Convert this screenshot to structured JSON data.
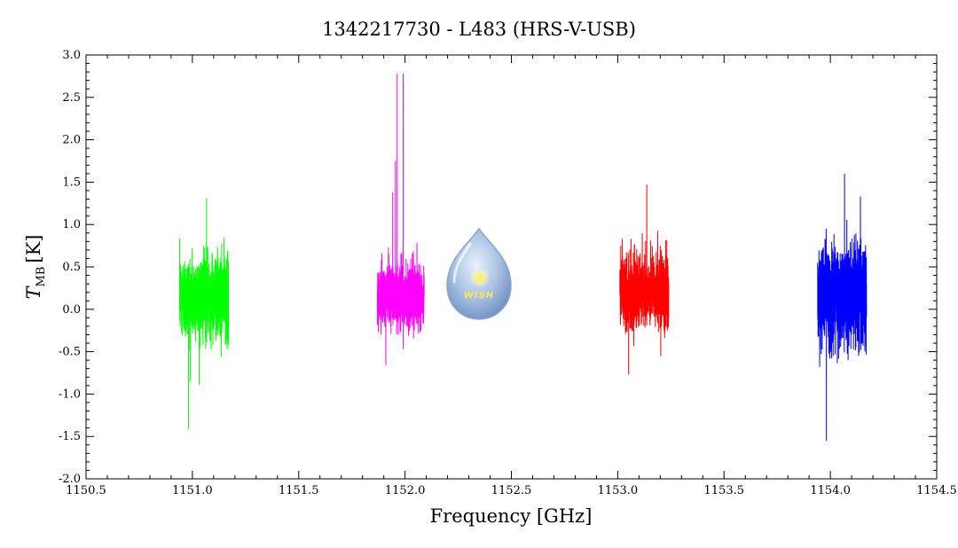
{
  "chart_data": {
    "type": "line",
    "title": "1342217730 - L483 (HRS-V-USB)",
    "xlabel": "Frequency [GHz]",
    "ylabel_main": "T",
    "ylabel_sub": "MB",
    "ylabel_unit": "[K]",
    "xlim": [
      1150.5,
      1154.5
    ],
    "ylim": [
      -2.0,
      3.0
    ],
    "xticks": [
      "1150.5",
      "1151.0",
      "1151.5",
      "1152.0",
      "1152.5",
      "1153.0",
      "1153.5",
      "1154.0",
      "1154.5"
    ],
    "yticks": [
      "3.0",
      "2.5",
      "2.0",
      "1.5",
      "1.0",
      "0.5",
      "0.0",
      "-0.5",
      "-1.0",
      "-1.5",
      "-2.0"
    ],
    "grid": false,
    "series": [
      {
        "color": "#00ff00",
        "x_range": [
          1150.94,
          1151.17
        ],
        "center": 0.15,
        "noise": 0.45,
        "min": -1.41,
        "max": 1.31,
        "peaks": []
      },
      {
        "color": "#ff00ff",
        "x_range": [
          1151.87,
          1152.09
        ],
        "center": 0.15,
        "noise": 0.35,
        "min": -0.66,
        "max": 2.78,
        "peaks": [
          {
            "x": 1151.963,
            "y": 2.78
          },
          {
            "x": 1151.955,
            "y": 1.75
          },
          {
            "x": 1151.942,
            "y": 1.38
          }
        ]
      },
      {
        "color": "#ff0000",
        "x_range": [
          1153.01,
          1153.24
        ],
        "center": 0.2,
        "noise": 0.4,
        "min": -0.77,
        "max": 1.47,
        "peaks": []
      },
      {
        "color": "#0000ff",
        "x_range": [
          1153.94,
          1154.17
        ],
        "center": 0.15,
        "noise": 0.55,
        "min": -1.55,
        "max": 1.6,
        "peaks": []
      }
    ]
  },
  "logo": {
    "text": "WISH"
  }
}
